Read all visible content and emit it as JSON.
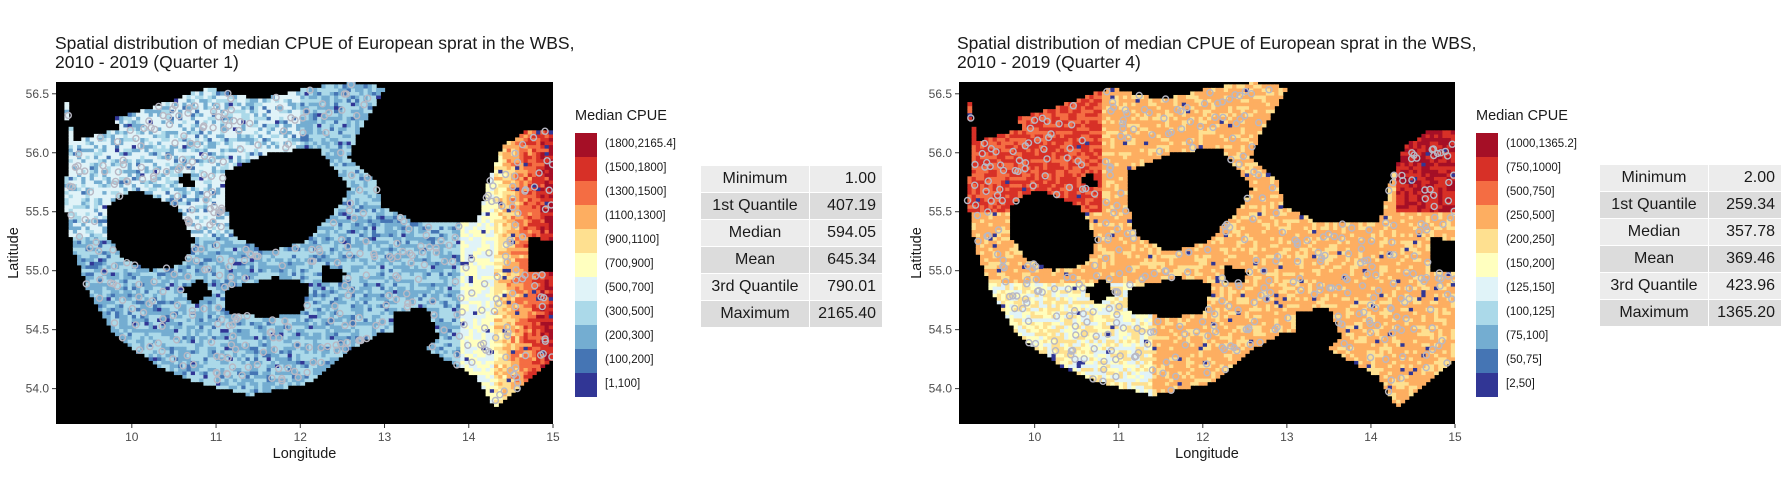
{
  "chart_data": [
    {
      "type": "heatmap",
      "title_line1": "Spatial distribution of median CPUE of European sprat in the WBS,",
      "title_line2": "2010 - 2019 (Quarter 1)",
      "xlabel": "Longitude",
      "ylabel": "Latitude",
      "xlim": [
        9.1,
        15.0
      ],
      "ylim": [
        53.7,
        56.6
      ],
      "x_ticks": [
        10,
        11,
        12,
        13,
        14,
        15
      ],
      "y_ticks": [
        54.0,
        54.5,
        55.0,
        55.5,
        56.0,
        56.5
      ],
      "y_tick_labels": [
        "54.0",
        "54.5",
        "55.0",
        "55.5",
        "56.0",
        "56.5"
      ],
      "background": "#000000",
      "legend_title": "Median CPUE",
      "legend": [
        {
          "label": "(1800,2165.4]",
          "color": "#a50f26"
        },
        {
          "label": "(1500,1800]",
          "color": "#d73027"
        },
        {
          "label": "(1300,1500]",
          "color": "#f46d43"
        },
        {
          "label": "(1100,1300]",
          "color": "#fdae61"
        },
        {
          "label": "(900,1100]",
          "color": "#fee090"
        },
        {
          "label": "(700,900]",
          "color": "#ffffbf"
        },
        {
          "label": "(500,700]",
          "color": "#e0f3f8"
        },
        {
          "label": "(300,500]",
          "color": "#abd9e9"
        },
        {
          "label": "(200,300]",
          "color": "#74add1"
        },
        {
          "label": "(100,200]",
          "color": "#4575b4"
        },
        {
          "label": "[1,100]",
          "color": "#313695"
        }
      ],
      "summary": [
        {
          "label": "Minimum",
          "value": "1.00"
        },
        {
          "label": "1st Quantile",
          "value": "407.19"
        },
        {
          "label": "Median",
          "value": "594.05"
        },
        {
          "label": "Mean",
          "value": "645.34"
        },
        {
          "label": "3rd Quantile",
          "value": "790.01"
        },
        {
          "label": "Maximum",
          "value": "2165.40"
        }
      ],
      "dominant_class": "(300,500]"
    },
    {
      "type": "heatmap",
      "title_line1": "Spatial distribution of median CPUE of European sprat in the WBS,",
      "title_line2": "2010 - 2019 (Quarter 4)",
      "xlabel": "Longitude",
      "ylabel": "Latitude",
      "xlim": [
        9.1,
        15.0
      ],
      "ylim": [
        53.7,
        56.6
      ],
      "x_ticks": [
        10,
        11,
        12,
        13,
        14,
        15
      ],
      "y_ticks": [
        54.0,
        54.5,
        55.0,
        55.5,
        56.0,
        56.5
      ],
      "y_tick_labels": [
        "54.0",
        "54.5",
        "55.0",
        "55.5",
        "56.0",
        "56.5"
      ],
      "background": "#000000",
      "legend_title": "Median CPUE",
      "legend": [
        {
          "label": "(1000,1365.2]",
          "color": "#a50f26"
        },
        {
          "label": "(750,1000]",
          "color": "#d73027"
        },
        {
          "label": "(500,750]",
          "color": "#f46d43"
        },
        {
          "label": "(250,500]",
          "color": "#fdae61"
        },
        {
          "label": "(200,250]",
          "color": "#fee090"
        },
        {
          "label": "(150,200]",
          "color": "#ffffbf"
        },
        {
          "label": "(125,150]",
          "color": "#e0f3f8"
        },
        {
          "label": "(100,125]",
          "color": "#abd9e9"
        },
        {
          "label": "(75,100]",
          "color": "#74add1"
        },
        {
          "label": "(50,75]",
          "color": "#4575b4"
        },
        {
          "label": "[2,50]",
          "color": "#313695"
        }
      ],
      "summary": [
        {
          "label": "Minimum",
          "value": "2.00"
        },
        {
          "label": "1st Quantile",
          "value": "259.34"
        },
        {
          "label": "Median",
          "value": "357.78"
        },
        {
          "label": "Mean",
          "value": "369.46"
        },
        {
          "label": "3rd Quantile",
          "value": "423.96"
        },
        {
          "label": "Maximum",
          "value": "1365.20"
        }
      ],
      "dominant_class": "(250,500]"
    }
  ]
}
